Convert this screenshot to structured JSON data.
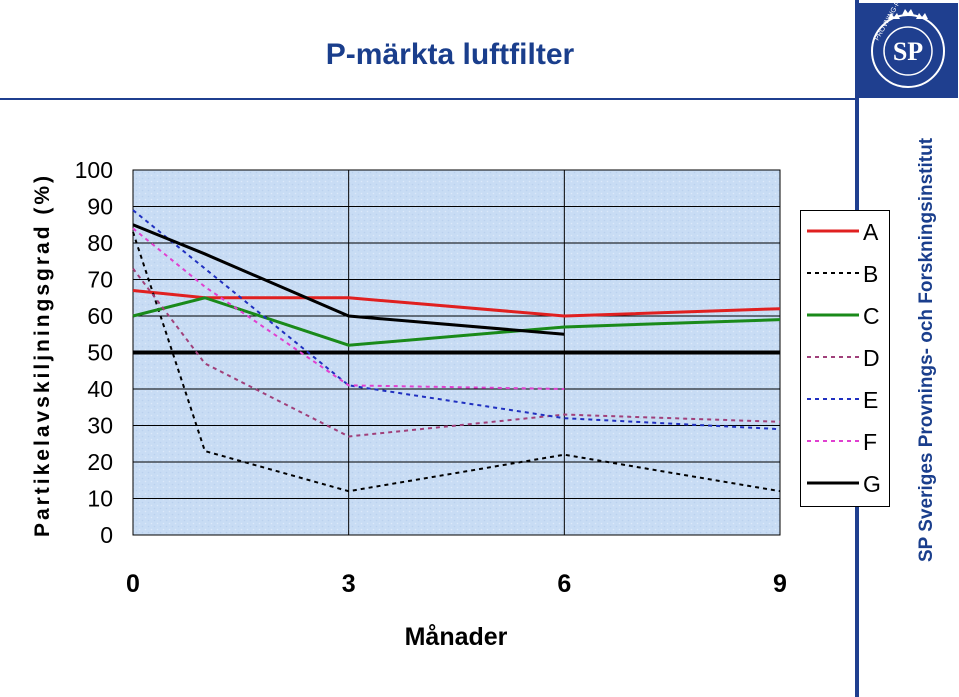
{
  "page": {
    "title": "P-märkta luftfilter",
    "side_text": "SP Sveriges Provnings- och Forskningsinstitut",
    "logo": {
      "text": "SP",
      "ring_text": "PROVNING·FORSKNING",
      "colors": {
        "background": "#1f3f8f",
        "foreground": "#ffffff"
      }
    }
  },
  "chart_data": {
    "type": "line",
    "title": "",
    "xlabel": "Månader",
    "ylabel": "Partikelavskiljningsgrad (%)",
    "xlim": [
      0,
      9
    ],
    "ylim": [
      0,
      100
    ],
    "x_ticks": [
      0,
      3,
      6,
      9
    ],
    "y_ticks": [
      0,
      10,
      20,
      30,
      40,
      50,
      60,
      70,
      80,
      90,
      100
    ],
    "grid": true,
    "legend_position": "right",
    "reference_line": {
      "y": 50
    },
    "series": [
      {
        "name": "A",
        "color": "#e02020",
        "dash": "solid",
        "x": [
          0,
          1,
          3,
          6,
          9
        ],
        "y": [
          67,
          65,
          65,
          60,
          62
        ]
      },
      {
        "name": "B",
        "color": "#000000",
        "dash": "dotted",
        "x": [
          0,
          1,
          3,
          6,
          9
        ],
        "y": [
          83,
          23,
          12,
          22,
          12
        ]
      },
      {
        "name": "C",
        "color": "#1a8a1a",
        "dash": "solid",
        "x": [
          0,
          1,
          3,
          6,
          9
        ],
        "y": [
          60,
          65,
          52,
          57,
          59
        ]
      },
      {
        "name": "D",
        "color": "#a0407a",
        "dash": "dotted",
        "x": [
          0,
          1,
          3,
          6,
          9
        ],
        "y": [
          73,
          47,
          27,
          33,
          31
        ]
      },
      {
        "name": "E",
        "color": "#2030c0",
        "dash": "dotted",
        "x": [
          0,
          3,
          6,
          9
        ],
        "y": [
          89,
          41,
          32,
          29
        ]
      },
      {
        "name": "F",
        "color": "#e040d0",
        "dash": "dotted",
        "x": [
          0,
          1,
          3,
          6
        ],
        "y": [
          84,
          68,
          41,
          40
        ]
      },
      {
        "name": "G",
        "color": "#000000",
        "dash": "solid",
        "x": [
          0,
          1,
          3,
          6
        ],
        "y": [
          85,
          77,
          60,
          55
        ]
      }
    ]
  }
}
